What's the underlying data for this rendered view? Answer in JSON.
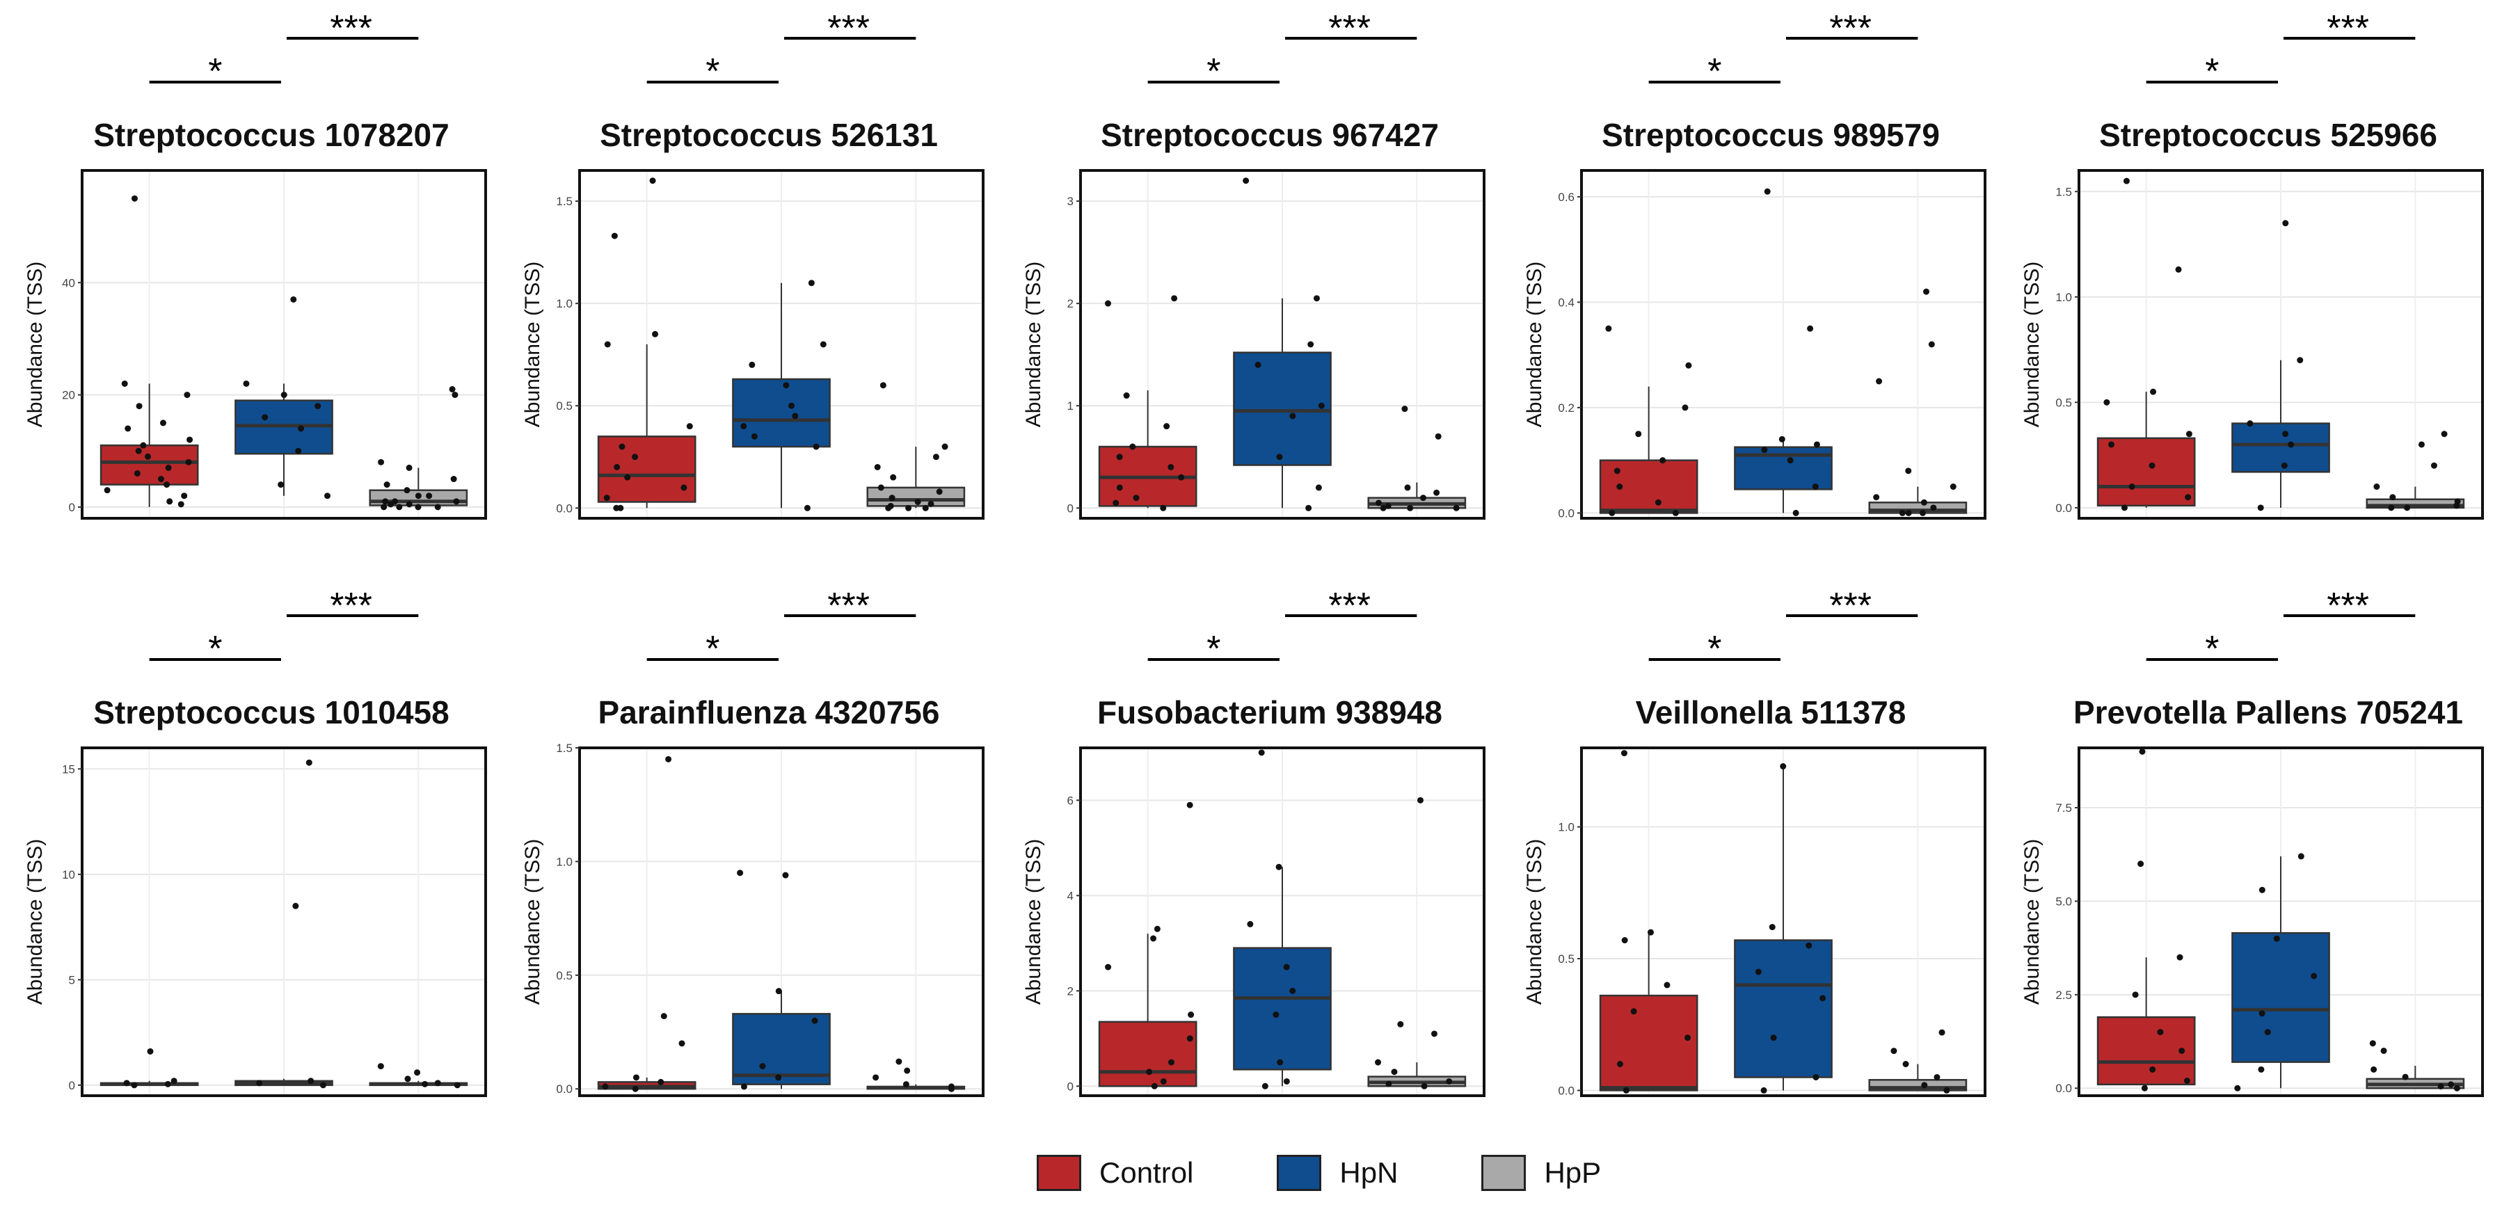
{
  "colors": {
    "Control": "#b8282a",
    "HpN": "#0f4d8f",
    "HpP": "#a9a9a9"
  },
  "y_axis_label": "Abundance (TSS)",
  "legend": [
    {
      "label": "Control",
      "color": "#b8282a"
    },
    {
      "label": "HpN",
      "color": "#0f4d8f"
    },
    {
      "label": "HpP",
      "color": "#a9a9a9"
    }
  ],
  "significance": {
    "control_vs_hpn": "*",
    "hpn_vs_hpp": "***"
  },
  "chart_data": [
    {
      "type": "box",
      "title": "Streptococcus 1078207",
      "ylabel": "Abundance (TSS)",
      "ylim": [
        -2,
        60
      ],
      "yticks": [
        0,
        20,
        40
      ],
      "ytick_labels": [
        "0",
        "20",
        "40"
      ],
      "groups": [
        "Control",
        "HpN",
        "HpP"
      ],
      "boxes": [
        {
          "q1": 4,
          "median": 8,
          "q3": 11,
          "whisker_low": 0,
          "whisker_high": 22
        },
        {
          "q1": 9.5,
          "median": 14.5,
          "q3": 19,
          "whisker_low": 2,
          "whisker_high": 22
        },
        {
          "q1": 0.3,
          "median": 1,
          "q3": 3,
          "whisker_low": 0,
          "whisker_high": 7
        }
      ],
      "points": [
        [
          55,
          22,
          20,
          18,
          15,
          14,
          12,
          11,
          10,
          9,
          8,
          7,
          6,
          5,
          4,
          3,
          2,
          1,
          0.5
        ],
        [
          37,
          22,
          20,
          18,
          16,
          14,
          10,
          4,
          2
        ],
        [
          21,
          20,
          8,
          7,
          5,
          4,
          3,
          2,
          2,
          1,
          1,
          1,
          0.5,
          0.5,
          0,
          0,
          0,
          0
        ]
      ]
    },
    {
      "type": "box",
      "title": "Streptococcus 526131",
      "ylabel": "Abundance (TSS)",
      "ylim": [
        -0.05,
        1.65
      ],
      "yticks": [
        0,
        0.5,
        1.0,
        1.5
      ],
      "ytick_labels": [
        "0.0",
        "0.5",
        "1.0",
        "1.5"
      ],
      "groups": [
        "Control",
        "HpN",
        "HpP"
      ],
      "boxes": [
        {
          "q1": 0.03,
          "median": 0.16,
          "q3": 0.35,
          "whisker_low": 0,
          "whisker_high": 0.8
        },
        {
          "q1": 0.3,
          "median": 0.43,
          "q3": 0.63,
          "whisker_low": 0,
          "whisker_high": 1.1
        },
        {
          "q1": 0.01,
          "median": 0.04,
          "q3": 0.1,
          "whisker_low": 0,
          "whisker_high": 0.3
        }
      ],
      "points": [
        [
          1.6,
          1.33,
          0.85,
          0.8,
          0.4,
          0.3,
          0.25,
          0.2,
          0.15,
          0.1,
          0.05,
          0,
          0
        ],
        [
          1.1,
          0.8,
          0.7,
          0.6,
          0.5,
          0.45,
          0.4,
          0.35,
          0.3,
          0
        ],
        [
          0.6,
          0.3,
          0.25,
          0.2,
          0.15,
          0.1,
          0.08,
          0.05,
          0.03,
          0.02,
          0.01,
          0,
          0,
          0
        ]
      ]
    },
    {
      "type": "box",
      "title": "Streptococcus 967427",
      "ylabel": "Abundance (TSS)",
      "ylim": [
        -0.1,
        3.3
      ],
      "yticks": [
        0,
        1,
        2,
        3
      ],
      "ytick_labels": [
        "0",
        "1",
        "2",
        "3"
      ],
      "groups": [
        "Control",
        "HpN",
        "HpP"
      ],
      "boxes": [
        {
          "q1": 0.02,
          "median": 0.3,
          "q3": 0.6,
          "whisker_low": 0,
          "whisker_high": 1.15
        },
        {
          "q1": 0.42,
          "median": 0.95,
          "q3": 1.52,
          "whisker_low": 0,
          "whisker_high": 2.05
        },
        {
          "q1": 0,
          "median": 0.04,
          "q3": 0.1,
          "whisker_low": 0,
          "whisker_high": 0.25
        }
      ],
      "points": [
        [
          2.05,
          2.0,
          1.1,
          0.8,
          0.6,
          0.5,
          0.4,
          0.3,
          0.2,
          0.1,
          0.05,
          0
        ],
        [
          3.2,
          2.05,
          1.6,
          1.4,
          1.0,
          0.9,
          0.5,
          0.2,
          0
        ],
        [
          0.97,
          0.7,
          0.2,
          0.15,
          0.1,
          0.05,
          0.02,
          0,
          0,
          0
        ]
      ]
    },
    {
      "type": "box",
      "title": "Streptococcus 989579",
      "ylabel": "Abundance (TSS)",
      "ylim": [
        -0.01,
        0.65
      ],
      "yticks": [
        0,
        0.2,
        0.4,
        0.6
      ],
      "ytick_labels": [
        "0.0",
        "0.2",
        "0.4",
        "0.6"
      ],
      "groups": [
        "Control",
        "HpN",
        "HpP"
      ],
      "boxes": [
        {
          "q1": 0,
          "median": 0.005,
          "q3": 0.1,
          "whisker_low": 0,
          "whisker_high": 0.24
        },
        {
          "q1": 0.045,
          "median": 0.11,
          "q3": 0.125,
          "whisker_low": 0,
          "whisker_high": 0.14
        },
        {
          "q1": 0,
          "median": 0.005,
          "q3": 0.02,
          "whisker_low": 0,
          "whisker_high": 0.05
        }
      ],
      "points": [
        [
          0.35,
          0.28,
          0.2,
          0.15,
          0.1,
          0.08,
          0.05,
          0.02,
          0,
          0
        ],
        [
          0.61,
          0.35,
          0.14,
          0.13,
          0.12,
          0.1,
          0.05,
          0
        ],
        [
          0.42,
          0.32,
          0.25,
          0.08,
          0.05,
          0.03,
          0.02,
          0.01,
          0,
          0,
          0
        ]
      ]
    },
    {
      "type": "box",
      "title": "Streptococcus 525966",
      "ylabel": "Abundance (TSS)",
      "ylim": [
        -0.05,
        1.6
      ],
      "yticks": [
        0,
        0.5,
        1.0,
        1.5
      ],
      "ytick_labels": [
        "0.0",
        "0.5",
        "1.0",
        "1.5"
      ],
      "groups": [
        "Control",
        "HpN",
        "HpP"
      ],
      "boxes": [
        {
          "q1": 0.01,
          "median": 0.1,
          "q3": 0.33,
          "whisker_low": 0,
          "whisker_high": 0.55
        },
        {
          "q1": 0.17,
          "median": 0.3,
          "q3": 0.4,
          "whisker_low": 0,
          "whisker_high": 0.7
        },
        {
          "q1": 0,
          "median": 0.01,
          "q3": 0.04,
          "whisker_low": 0,
          "whisker_high": 0.1
        }
      ],
      "points": [
        [
          1.55,
          1.13,
          0.55,
          0.5,
          0.35,
          0.3,
          0.2,
          0.1,
          0.05,
          0
        ],
        [
          1.35,
          0.7,
          0.4,
          0.35,
          0.3,
          0.2,
          0
        ],
        [
          0.35,
          0.3,
          0.2,
          0.1,
          0.05,
          0.03,
          0.01,
          0,
          0
        ]
      ]
    },
    {
      "type": "box",
      "title": "Streptococcus 1010458",
      "ylabel": "Abundance (TSS)",
      "ylim": [
        -0.5,
        16
      ],
      "yticks": [
        0,
        5,
        10,
        15
      ],
      "ytick_labels": [
        "0",
        "5",
        "10",
        "15"
      ],
      "groups": [
        "Control",
        "HpN",
        "HpP"
      ],
      "boxes": [
        {
          "q1": 0,
          "median": 0.05,
          "q3": 0.1,
          "whisker_low": 0,
          "whisker_high": 0.2
        },
        {
          "q1": 0,
          "median": 0.1,
          "q3": 0.2,
          "whisker_low": 0,
          "whisker_high": 0.3
        },
        {
          "q1": 0,
          "median": 0.05,
          "q3": 0.1,
          "whisker_low": 0,
          "whisker_high": 0.2
        }
      ],
      "points": [
        [
          1.6,
          0.2,
          0.1,
          0.05,
          0
        ],
        [
          15.3,
          8.5,
          0.2,
          0.1,
          0
        ],
        [
          0.9,
          0.6,
          0.3,
          0.1,
          0.05,
          0
        ]
      ]
    },
    {
      "type": "box",
      "title": "Parainfluenza 4320756",
      "ylabel": "Abundance (TSS)",
      "ylim": [
        -0.03,
        1.5
      ],
      "yticks": [
        0,
        0.5,
        1.0,
        1.5
      ],
      "ytick_labels": [
        "0.0",
        "0.5",
        "1.0",
        "1.5"
      ],
      "groups": [
        "Control",
        "HpN",
        "HpP"
      ],
      "boxes": [
        {
          "q1": 0,
          "median": 0.01,
          "q3": 0.03,
          "whisker_low": 0,
          "whisker_high": 0.05
        },
        {
          "q1": 0.02,
          "median": 0.06,
          "q3": 0.33,
          "whisker_low": 0,
          "whisker_high": 0.43
        },
        {
          "q1": 0,
          "median": 0.005,
          "q3": 0.01,
          "whisker_low": 0,
          "whisker_high": 0.02
        }
      ],
      "points": [
        [
          1.45,
          0.32,
          0.2,
          0.05,
          0.03,
          0.01,
          0
        ],
        [
          0.95,
          0.94,
          0.43,
          0.3,
          0.1,
          0.05,
          0.01
        ],
        [
          0.12,
          0.08,
          0.05,
          0.02,
          0.01,
          0
        ]
      ]
    },
    {
      "type": "box",
      "title": "Fusobacterium 938948",
      "ylabel": "Abundance (TSS)",
      "ylim": [
        -0.2,
        7.1
      ],
      "yticks": [
        0,
        2,
        4,
        6
      ],
      "ytick_labels": [
        "0",
        "2",
        "4",
        "6"
      ],
      "groups": [
        "Control",
        "HpN",
        "HpP"
      ],
      "boxes": [
        {
          "q1": 0,
          "median": 0.3,
          "q3": 1.35,
          "whisker_low": 0,
          "whisker_high": 3.2
        },
        {
          "q1": 0.35,
          "median": 1.85,
          "q3": 2.9,
          "whisker_low": 0,
          "whisker_high": 4.6
        },
        {
          "q1": 0,
          "median": 0.08,
          "q3": 0.2,
          "whisker_low": 0,
          "whisker_high": 0.5
        }
      ],
      "points": [
        [
          5.9,
          3.3,
          3.1,
          2.5,
          1.5,
          1.0,
          0.5,
          0.3,
          0.1,
          0
        ],
        [
          7.0,
          4.6,
          3.4,
          2.5,
          2.0,
          1.5,
          0.5,
          0.1,
          0
        ],
        [
          6.0,
          1.3,
          1.1,
          0.5,
          0.3,
          0.1,
          0.05,
          0
        ]
      ]
    },
    {
      "type": "box",
      "title": "Veillonella 511378",
      "ylabel": "Abundance (TSS)",
      "ylim": [
        -0.02,
        1.3
      ],
      "yticks": [
        0,
        0.5,
        1.0
      ],
      "ytick_labels": [
        "0.0",
        "0.5",
        "1.0"
      ],
      "groups": [
        "Control",
        "HpN",
        "HpP"
      ],
      "boxes": [
        {
          "q1": 0,
          "median": 0.01,
          "q3": 0.36,
          "whisker_low": 0,
          "whisker_high": 0.6
        },
        {
          "q1": 0.05,
          "median": 0.4,
          "q3": 0.57,
          "whisker_low": 0,
          "whisker_high": 1.23
        },
        {
          "q1": 0,
          "median": 0.01,
          "q3": 0.04,
          "whisker_low": 0,
          "whisker_high": 0.1
        }
      ],
      "points": [
        [
          1.28,
          0.6,
          0.57,
          0.4,
          0.3,
          0.2,
          0.1,
          0
        ],
        [
          1.23,
          0.62,
          0.55,
          0.45,
          0.35,
          0.2,
          0.05,
          0
        ],
        [
          0.22,
          0.15,
          0.1,
          0.05,
          0.02,
          0
        ]
      ]
    },
    {
      "type": "box",
      "title": "Prevotella Pallens 705241",
      "ylabel": "Abundance (TSS)",
      "ylim": [
        -0.2,
        9.1
      ],
      "yticks": [
        0,
        2.5,
        5.0,
        7.5
      ],
      "ytick_labels": [
        "0.0",
        "2.5",
        "5.0",
        "7.5"
      ],
      "groups": [
        "Control",
        "HpN",
        "HpP"
      ],
      "boxes": [
        {
          "q1": 0.1,
          "median": 0.7,
          "q3": 1.9,
          "whisker_low": 0,
          "whisker_high": 3.5
        },
        {
          "q1": 0.7,
          "median": 2.1,
          "q3": 4.15,
          "whisker_low": 0,
          "whisker_high": 6.2
        },
        {
          "q1": 0,
          "median": 0.1,
          "q3": 0.25,
          "whisker_low": 0,
          "whisker_high": 0.6
        }
      ],
      "points": [
        [
          9.0,
          6.0,
          3.5,
          2.5,
          1.5,
          1.0,
          0.5,
          0.2,
          0
        ],
        [
          6.2,
          5.3,
          4.0,
          3.0,
          2.0,
          1.5,
          0.5,
          0
        ],
        [
          1.2,
          1.0,
          0.5,
          0.3,
          0.1,
          0.05,
          0
        ]
      ]
    }
  ]
}
